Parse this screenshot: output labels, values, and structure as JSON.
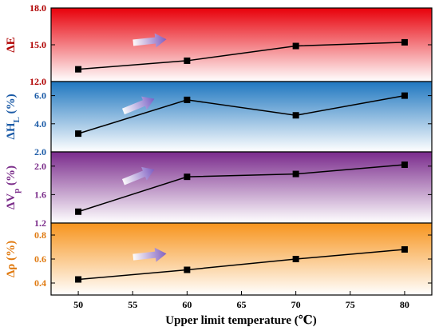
{
  "chart_data": {
    "type": "line",
    "x": [
      50,
      60,
      70,
      80
    ],
    "xlabel": "Upper limit temperature (℃)",
    "xlim": [
      47.5,
      82.5
    ],
    "xticks": [
      "50",
      "55",
      "60",
      "65",
      "70",
      "75",
      "80"
    ],
    "grid": false,
    "panels": [
      {
        "ylabel_main": "ΔE",
        "ylabel_sub": "",
        "ylabel_tail": "",
        "ylabel_color": "#b00000",
        "background": [
          "#e8000a",
          "#ffffff"
        ],
        "ylim": [
          12.0,
          18.0
        ],
        "yticks": [
          "12.0",
          "15.0",
          "18.0"
        ],
        "values": [
          13.0,
          13.7,
          14.9,
          15.2
        ],
        "arrow": "right"
      },
      {
        "ylabel_main": "ΔH",
        "ylabel_sub": "L",
        "ylabel_tail": " (%)",
        "ylabel_color": "#1a5aa6",
        "background": [
          "#1f77c0",
          "#ffffff"
        ],
        "ylim": [
          2.0,
          7.0
        ],
        "yticks": [
          "2.0",
          "4.0",
          "6.0"
        ],
        "values": [
          3.3,
          5.7,
          4.6,
          6.0
        ],
        "arrow": "up-right"
      },
      {
        "ylabel_main": "ΔV",
        "ylabel_sub": "p",
        "ylabel_tail": " (%)",
        "ylabel_color": "#7b2d8a",
        "background": [
          "#7a2b8c",
          "#ffffff"
        ],
        "ylim": [
          1.2,
          2.2
        ],
        "yticks": [
          "1.2",
          "1.6",
          "2.0"
        ],
        "values": [
          1.36,
          1.85,
          1.89,
          2.02
        ],
        "arrow": "up-right"
      },
      {
        "ylabel_main": "Δρ",
        "ylabel_sub": "",
        "ylabel_tail": " (%)",
        "ylabel_color": "#e07a10",
        "background": [
          "#f7941d",
          "#ffffff"
        ],
        "ylim": [
          0.3,
          0.9
        ],
        "yticks": [
          "0.4",
          "0.6",
          "0.8"
        ],
        "values": [
          0.43,
          0.51,
          0.6,
          0.68
        ],
        "arrow": "right"
      }
    ]
  }
}
